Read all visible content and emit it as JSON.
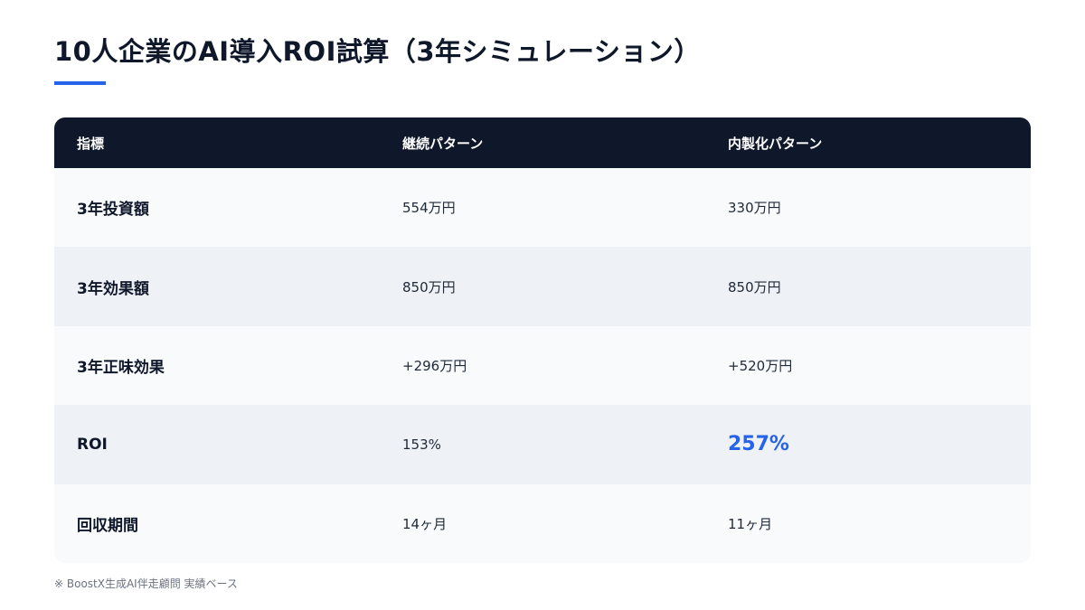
{
  "title": "10人企業のAI導入ROI試算（3年シミュレーション）",
  "accent_color": "#2563eb",
  "header_bg_color": "#0f172a",
  "table": {
    "headers": [
      "指標",
      "継続パターン",
      "内製化パターン"
    ],
    "rows": [
      {
        "label": "3年投資額",
        "continuation": "554万円",
        "inhouse": "330万円"
      },
      {
        "label": "3年効果額",
        "continuation": "850万円",
        "inhouse": "850万円"
      },
      {
        "label": "3年正味効果",
        "continuation": "+296万円",
        "inhouse": "+520万円"
      },
      {
        "label": "ROI",
        "continuation": "153%",
        "inhouse": "257%"
      },
      {
        "label": "回収期間",
        "continuation": "14ヶ月",
        "inhouse": "11ヶ月"
      }
    ]
  },
  "footnote": "※ BoostX生成AI伴走顧問 実績ベース"
}
